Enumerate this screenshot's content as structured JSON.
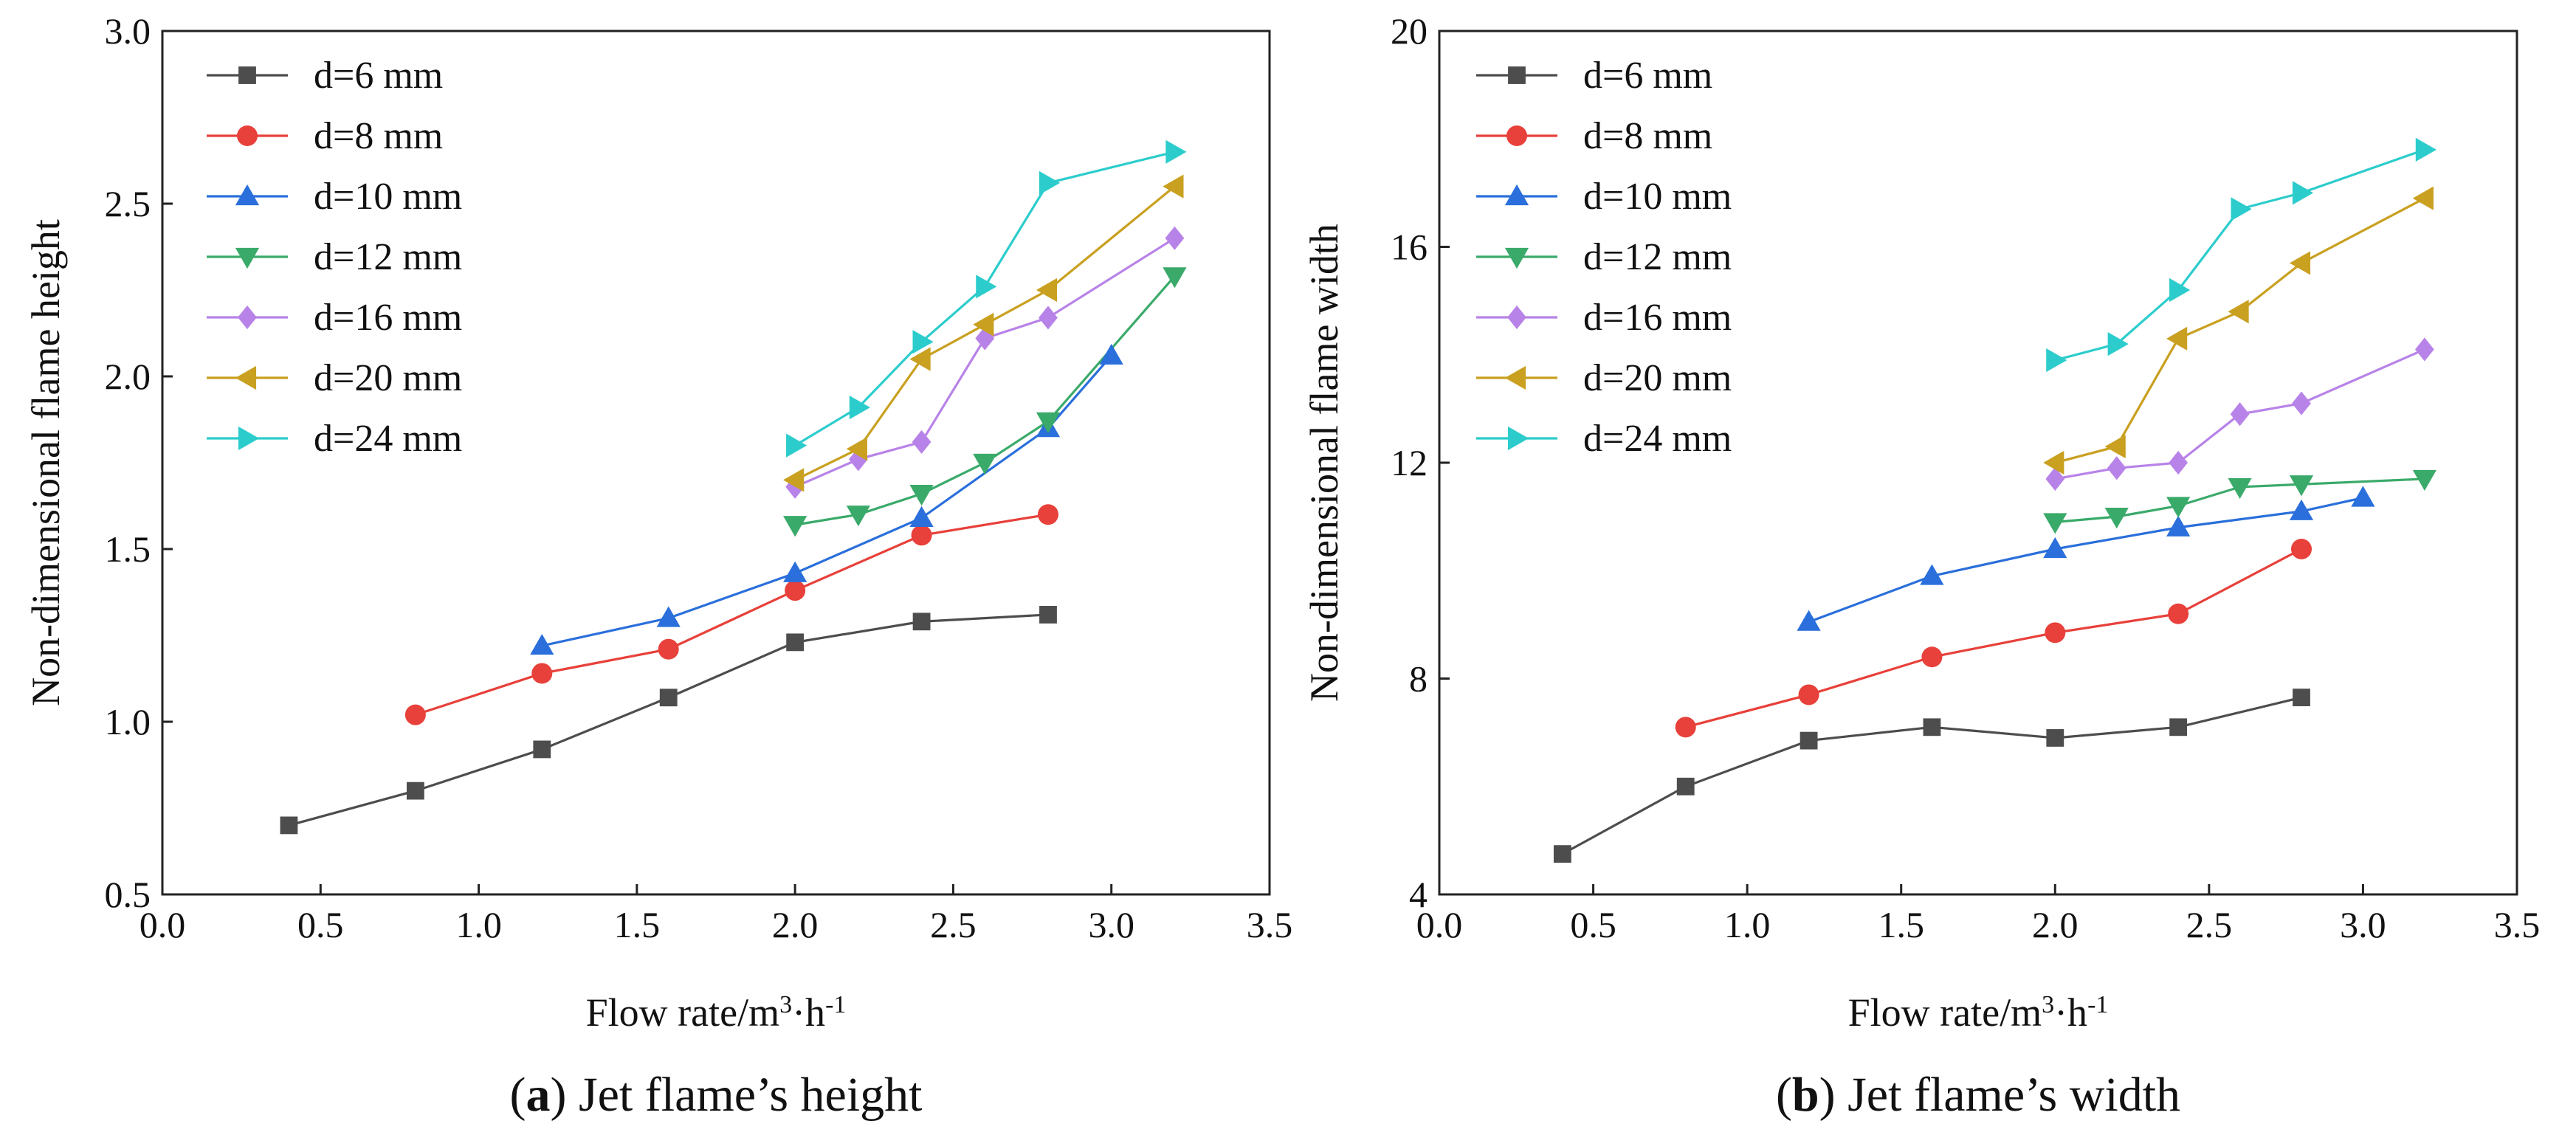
{
  "chart_data": [
    {
      "type": "line",
      "panel": "a",
      "caption_letter": "a",
      "caption_text": " Jet flame’s height",
      "xlabel_main": "Flow rate/m",
      "xlabel_sup1": "3",
      "xlabel_mid": "·h",
      "xlabel_sup2": "-1",
      "ylabel": "Non-dimensional flame height",
      "xlim": [
        0.0,
        3.5
      ],
      "ylim": [
        0.5,
        3.0
      ],
      "xticks": [
        "0.0",
        "0.5",
        "1.0",
        "1.5",
        "2.0",
        "2.5",
        "3.0",
        "3.5"
      ],
      "yticks": [
        "0.5",
        "1.0",
        "1.5",
        "2.0",
        "2.5",
        "3.0"
      ],
      "legend_position": "top-left",
      "series": [
        {
          "name": "d=6 mm",
          "color": "#4d4d4d",
          "marker": "square",
          "x": [
            0.4,
            0.8,
            1.2,
            1.6,
            2.0,
            2.4,
            2.8
          ],
          "y": [
            0.7,
            0.8,
            0.92,
            1.07,
            1.23,
            1.29,
            1.31
          ]
        },
        {
          "name": "d=8 mm",
          "color": "#e8403a",
          "marker": "circle",
          "x": [
            0.8,
            1.2,
            1.6,
            2.0,
            2.4,
            2.8
          ],
          "y": [
            1.02,
            1.14,
            1.21,
            1.38,
            1.54,
            1.6
          ]
        },
        {
          "name": "d=10 mm",
          "color": "#2a6fdb",
          "marker": "triangle-up",
          "x": [
            1.2,
            1.6,
            2.0,
            2.4,
            2.8,
            3.0
          ],
          "y": [
            1.22,
            1.3,
            1.43,
            1.59,
            1.85,
            2.06
          ]
        },
        {
          "name": "d=12 mm",
          "color": "#3aaa6a",
          "marker": "triangle-down",
          "x": [
            2.0,
            2.2,
            2.4,
            2.6,
            2.8,
            3.2
          ],
          "y": [
            1.57,
            1.6,
            1.66,
            1.75,
            1.87,
            2.29
          ]
        },
        {
          "name": "d=16 mm",
          "color": "#b883e8",
          "marker": "diamond",
          "x": [
            2.0,
            2.2,
            2.4,
            2.6,
            2.8,
            3.2
          ],
          "y": [
            1.68,
            1.76,
            1.81,
            2.11,
            2.17,
            2.4
          ]
        },
        {
          "name": "d=20 mm",
          "color": "#c9a020",
          "marker": "triangle-left",
          "x": [
            2.0,
            2.2,
            2.4,
            2.6,
            2.8,
            3.2
          ],
          "y": [
            1.7,
            1.79,
            2.05,
            2.15,
            2.25,
            2.55
          ]
        },
        {
          "name": "d=24 mm",
          "color": "#2ccccc",
          "marker": "triangle-right",
          "x": [
            2.0,
            2.2,
            2.4,
            2.6,
            2.8,
            3.2
          ],
          "y": [
            1.8,
            1.91,
            2.1,
            2.26,
            2.56,
            2.65
          ]
        }
      ]
    },
    {
      "type": "line",
      "panel": "b",
      "caption_letter": "b",
      "caption_text": " Jet flame’s width",
      "xlabel_main": "Flow rate/m",
      "xlabel_sup1": "3",
      "xlabel_mid": "·h",
      "xlabel_sup2": "-1",
      "ylabel": "Non-dimensional flame width",
      "xlim": [
        0.0,
        3.5
      ],
      "ylim": [
        4,
        20
      ],
      "xticks": [
        "0.0",
        "0.5",
        "1.0",
        "1.5",
        "2.0",
        "2.5",
        "3.0",
        "3.5"
      ],
      "yticks": [
        "4",
        "8",
        "12",
        "16",
        "20"
      ],
      "legend_position": "top-left",
      "series": [
        {
          "name": "d=6 mm",
          "color": "#4d4d4d",
          "marker": "square",
          "x": [
            0.4,
            0.8,
            1.2,
            1.6,
            2.0,
            2.4,
            2.8
          ],
          "y": [
            4.75,
            6.0,
            6.85,
            7.1,
            6.9,
            7.1,
            7.65
          ]
        },
        {
          "name": "d=8 mm",
          "color": "#e8403a",
          "marker": "circle",
          "x": [
            0.8,
            1.2,
            1.6,
            2.0,
            2.4,
            2.8
          ],
          "y": [
            7.1,
            7.7,
            8.4,
            8.85,
            9.2,
            10.4
          ]
        },
        {
          "name": "d=10 mm",
          "color": "#2a6fdb",
          "marker": "triangle-up",
          "x": [
            1.2,
            1.6,
            2.0,
            2.4,
            2.8,
            3.0
          ],
          "y": [
            9.05,
            9.9,
            10.4,
            10.8,
            11.1,
            11.35
          ]
        },
        {
          "name": "d=12 mm",
          "color": "#3aaa6a",
          "marker": "triangle-down",
          "x": [
            2.0,
            2.2,
            2.4,
            2.6,
            2.8,
            3.2
          ],
          "y": [
            10.9,
            11.0,
            11.2,
            11.55,
            11.6,
            11.7
          ]
        },
        {
          "name": "d=16 mm",
          "color": "#b883e8",
          "marker": "diamond",
          "x": [
            2.0,
            2.2,
            2.4,
            2.6,
            2.8,
            3.2
          ],
          "y": [
            11.7,
            11.9,
            12.0,
            12.9,
            13.1,
            14.1
          ]
        },
        {
          "name": "d=20 mm",
          "color": "#c9a020",
          "marker": "triangle-left",
          "x": [
            2.0,
            2.2,
            2.4,
            2.6,
            2.8,
            3.2
          ],
          "y": [
            12.0,
            12.3,
            14.3,
            14.8,
            15.7,
            16.9
          ]
        },
        {
          "name": "d=24 mm",
          "color": "#2ccccc",
          "marker": "triangle-right",
          "x": [
            2.0,
            2.2,
            2.4,
            2.6,
            2.8,
            3.2
          ],
          "y": [
            13.9,
            14.2,
            15.2,
            16.7,
            17.0,
            17.8
          ]
        }
      ]
    }
  ]
}
